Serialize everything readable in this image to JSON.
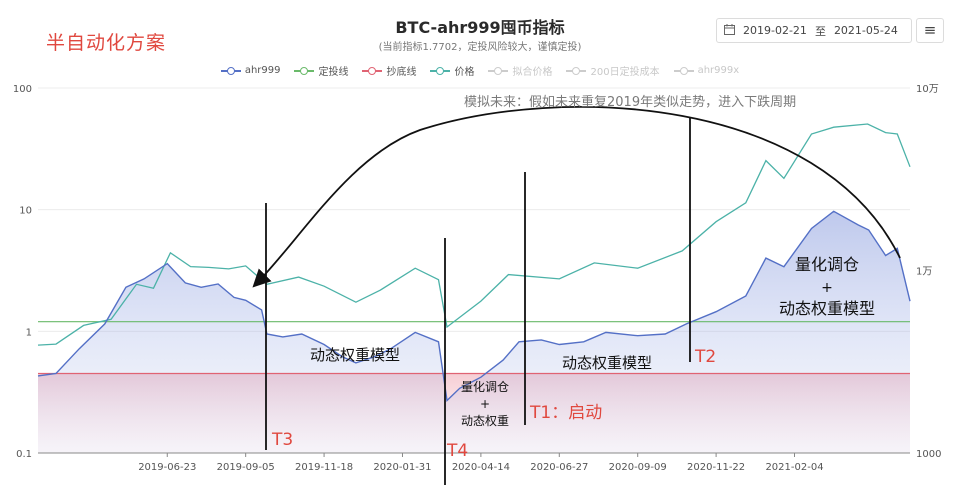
{
  "plan_label": "半自动化方案",
  "header": {
    "title": "BTC-ahr999囤币指标",
    "subtitle": "(当前指标1.7702，定投风险较大，谨慎定投)"
  },
  "date_range": {
    "start": "2019-02-21",
    "separator": "至",
    "end": "2021-05-24"
  },
  "menu_icon": "≡",
  "legend": [
    {
      "label": "ahr999",
      "color": "#5470c6",
      "active": true
    },
    {
      "label": "定投线",
      "color": "#6aba6a",
      "active": true
    },
    {
      "label": "抄底线",
      "color": "#e06373",
      "active": true
    },
    {
      "label": "价格",
      "color": "#4cb2a8",
      "active": true
    },
    {
      "label": "拟合价格",
      "color": "#cccccc",
      "active": false
    },
    {
      "label": "200日定投成本",
      "color": "#cccccc",
      "active": false
    },
    {
      "label": "ahr999x",
      "color": "#cccccc",
      "active": false
    }
  ],
  "chart_data": {
    "type": "line",
    "title": "BTC-ahr999囤币指标",
    "x_tick_labels": [
      "2019-06-23",
      "2019-09-05",
      "2019-11-18",
      "2020-01-31",
      "2020-04-14",
      "2020-06-27",
      "2020-09-09",
      "2020-11-22",
      "2021-02-04"
    ],
    "x_range": [
      "2019-02-21",
      "2021-05-24"
    ],
    "y_left": {
      "scale": "log",
      "range": [
        0.1,
        100
      ],
      "tick_labels": [
        "0.1",
        "1",
        "10",
        "100"
      ]
    },
    "y_right": {
      "scale": "log",
      "range": [
        1000,
        100000
      ],
      "tick_labels": [
        "1000",
        "1万",
        "10万"
      ]
    },
    "reference_lines": [
      {
        "name": "定投线",
        "value": 1.2,
        "color": "#6aba6a"
      },
      {
        "name": "抄底线",
        "value": 0.45,
        "color": "#e06373"
      }
    ],
    "series": [
      {
        "name": "ahr999",
        "axis": "left",
        "color": "#5470c6",
        "points": [
          [
            "2019-02-21",
            0.43
          ],
          [
            "2019-03-10",
            0.45
          ],
          [
            "2019-04-01",
            0.72
          ],
          [
            "2019-04-25",
            1.15
          ],
          [
            "2019-05-15",
            2.3
          ],
          [
            "2019-06-01",
            2.7
          ],
          [
            "2019-06-23",
            3.6
          ],
          [
            "2019-07-10",
            2.5
          ],
          [
            "2019-07-25",
            2.3
          ],
          [
            "2019-08-10",
            2.45
          ],
          [
            "2019-08-25",
            1.9
          ],
          [
            "2019-09-05",
            1.8
          ],
          [
            "2019-09-20",
            1.5
          ],
          [
            "2019-09-25",
            0.95
          ],
          [
            "2019-10-10",
            0.9
          ],
          [
            "2019-10-28",
            0.95
          ],
          [
            "2019-11-18",
            0.78
          ],
          [
            "2019-12-05",
            0.62
          ],
          [
            "2019-12-18",
            0.55
          ],
          [
            "2020-01-05",
            0.62
          ],
          [
            "2020-01-20",
            0.72
          ],
          [
            "2020-02-12",
            0.98
          ],
          [
            "2020-03-05",
            0.82
          ],
          [
            "2020-03-13",
            0.27
          ],
          [
            "2020-03-25",
            0.34
          ],
          [
            "2020-04-14",
            0.42
          ],
          [
            "2020-05-05",
            0.58
          ],
          [
            "2020-05-20",
            0.82
          ],
          [
            "2020-06-10",
            0.85
          ],
          [
            "2020-06-27",
            0.78
          ],
          [
            "2020-07-20",
            0.82
          ],
          [
            "2020-08-10",
            0.98
          ],
          [
            "2020-09-09",
            0.92
          ],
          [
            "2020-10-05",
            0.95
          ],
          [
            "2020-10-25",
            1.15
          ],
          [
            "2020-11-22",
            1.45
          ],
          [
            "2020-12-20",
            1.95
          ],
          [
            "2021-01-08",
            4.0
          ],
          [
            "2021-01-25",
            3.4
          ],
          [
            "2021-02-20",
            7.0
          ],
          [
            "2021-03-13",
            9.7
          ],
          [
            "2021-04-05",
            7.5
          ],
          [
            "2021-04-15",
            6.8
          ],
          [
            "2021-05-01",
            4.2
          ],
          [
            "2021-05-12",
            4.8
          ],
          [
            "2021-05-24",
            1.77
          ]
        ]
      },
      {
        "name": "价格",
        "axis": "right",
        "color": "#4cb2a8",
        "points": [
          [
            "2019-02-21",
            3900
          ],
          [
            "2019-03-10",
            3950
          ],
          [
            "2019-04-05",
            5000
          ],
          [
            "2019-05-01",
            5400
          ],
          [
            "2019-05-25",
            8400
          ],
          [
            "2019-06-10",
            8000
          ],
          [
            "2019-06-26",
            12500
          ],
          [
            "2019-07-15",
            10500
          ],
          [
            "2019-08-01",
            10400
          ],
          [
            "2019-08-20",
            10200
          ],
          [
            "2019-09-05",
            10600
          ],
          [
            "2019-09-25",
            8400
          ],
          [
            "2019-10-25",
            9200
          ],
          [
            "2019-11-18",
            8200
          ],
          [
            "2019-12-18",
            6700
          ],
          [
            "2020-01-10",
            7800
          ],
          [
            "2020-02-12",
            10300
          ],
          [
            "2020-03-05",
            8900
          ],
          [
            "2020-03-13",
            4900
          ],
          [
            "2020-04-14",
            6800
          ],
          [
            "2020-05-10",
            9500
          ],
          [
            "2020-06-27",
            9000
          ],
          [
            "2020-07-30",
            11000
          ],
          [
            "2020-09-09",
            10300
          ],
          [
            "2020-10-21",
            12800
          ],
          [
            "2020-11-22",
            18500
          ],
          [
            "2020-12-20",
            23500
          ],
          [
            "2021-01-08",
            40000
          ],
          [
            "2021-01-25",
            32000
          ],
          [
            "2021-02-20",
            56000
          ],
          [
            "2021-03-13",
            61000
          ],
          [
            "2021-04-14",
            63500
          ],
          [
            "2021-05-01",
            57000
          ],
          [
            "2021-05-12",
            56000
          ],
          [
            "2021-05-24",
            37000
          ]
        ]
      }
    ],
    "annotations": {
      "future_note": "模拟未来：假如未来重复2019年类似走势，进入下跌周期",
      "markers": [
        {
          "label": "T3",
          "date": "2019-09-20"
        },
        {
          "label": "T4",
          "date": "2020-03-13"
        },
        {
          "label": "T1：启动",
          "date": "2020-05-20"
        },
        {
          "label": "T2",
          "date": "2020-10-25"
        }
      ],
      "region_labels": [
        {
          "id": "r1",
          "text": "动态权重模型"
        },
        {
          "id": "r2",
          "text": "量化调仓"
        },
        {
          "id": "r3",
          "text": "+"
        },
        {
          "id": "r4",
          "text": "动态权重"
        },
        {
          "id": "r5",
          "text": "动态权重模型"
        },
        {
          "id": "r6",
          "text": "量化调仓"
        },
        {
          "id": "r7",
          "text": "+"
        },
        {
          "id": "r8",
          "text": "动态权重模型"
        }
      ]
    }
  }
}
